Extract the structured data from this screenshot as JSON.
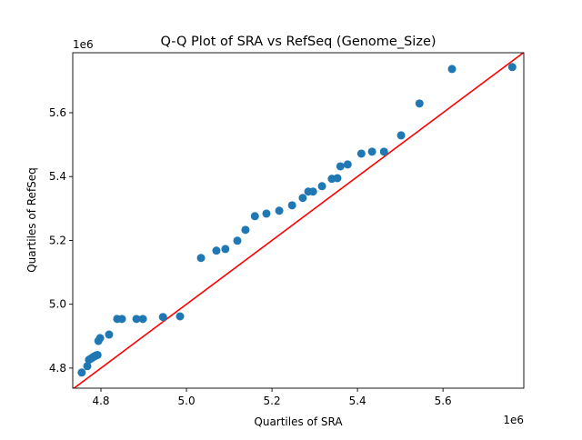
{
  "chart_data": {
    "type": "scatter",
    "title": "Q-Q Plot of SRA vs RefSeq (Genome_Size)",
    "xlabel": "Quartiles of SRA",
    "ylabel": "Quartiles of RefSeq",
    "x_offset_label": "1e6",
    "y_offset_label": "1e6",
    "xlim": [
      4.734,
      5.789
    ],
    "ylim": [
      4.737,
      5.788
    ],
    "xticks": [
      4.8,
      5.0,
      5.2,
      5.4,
      5.6
    ],
    "yticks": [
      4.8,
      5.0,
      5.2,
      5.4,
      5.6
    ],
    "xtick_labels": [
      "4.8",
      "5.0",
      "5.2",
      "5.4",
      "5.6"
    ],
    "ytick_labels": [
      "4.8",
      "5.0",
      "5.2",
      "5.4",
      "5.6"
    ],
    "grid": false,
    "point_color": "#1f77b4",
    "reference_line": {
      "type": "y=x",
      "color": "#ff0000"
    },
    "points": [
      [
        4.755,
        4.786
      ],
      [
        4.768,
        4.806
      ],
      [
        4.772,
        4.826
      ],
      [
        4.777,
        4.83
      ],
      [
        4.781,
        4.834
      ],
      [
        4.785,
        4.837
      ],
      [
        4.789,
        4.84
      ],
      [
        4.792,
        4.841
      ],
      [
        4.794,
        4.885
      ],
      [
        4.798,
        4.894
      ],
      [
        4.819,
        4.905
      ],
      [
        4.838,
        4.954
      ],
      [
        4.849,
        4.954
      ],
      [
        4.883,
        4.954
      ],
      [
        4.898,
        4.954
      ],
      [
        4.945,
        4.96
      ],
      [
        4.985,
        4.962
      ],
      [
        5.034,
        5.145
      ],
      [
        5.07,
        5.168
      ],
      [
        5.091,
        5.173
      ],
      [
        5.119,
        5.199
      ],
      [
        5.138,
        5.233
      ],
      [
        5.16,
        5.276
      ],
      [
        5.187,
        5.284
      ],
      [
        5.217,
        5.293
      ],
      [
        5.247,
        5.31
      ],
      [
        5.272,
        5.333
      ],
      [
        5.285,
        5.353
      ],
      [
        5.296,
        5.353
      ],
      [
        5.317,
        5.37
      ],
      [
        5.34,
        5.393
      ],
      [
        5.353,
        5.395
      ],
      [
        5.36,
        5.432
      ],
      [
        5.377,
        5.438
      ],
      [
        5.409,
        5.472
      ],
      [
        5.434,
        5.478
      ],
      [
        5.462,
        5.478
      ],
      [
        5.502,
        5.529
      ],
      [
        5.545,
        5.629
      ],
      [
        5.621,
        5.737
      ],
      [
        5.762,
        5.743
      ]
    ]
  }
}
